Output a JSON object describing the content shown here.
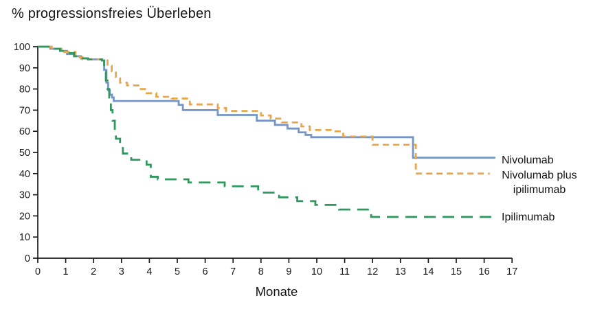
{
  "chart_data": {
    "type": "line",
    "variant": "kaplan-meier-step",
    "title": "% progressionsfreies Überleben",
    "xlabel": "Monate",
    "ylabel": "% progressionsfreies Überleben",
    "xlim": [
      0,
      17
    ],
    "ylim": [
      0,
      100
    ],
    "xticks": [
      0,
      1,
      2,
      3,
      4,
      5,
      6,
      7,
      8,
      9,
      10,
      11,
      12,
      13,
      14,
      15,
      16,
      17
    ],
    "yticks": [
      0,
      10,
      20,
      30,
      40,
      50,
      60,
      70,
      80,
      90,
      100
    ],
    "grid": false,
    "axis_color": "#1a1a1a",
    "legend_position": "right of curve ends",
    "series": [
      {
        "name": "Nivolumab",
        "label_lines": [
          "Nivolumab"
        ],
        "color": "#7495c6",
        "line_style": "solid",
        "x_end": 16.4,
        "points": [
          [
            0,
            100
          ],
          [
            0.45,
            99
          ],
          [
            0.8,
            98
          ],
          [
            1.05,
            96.5
          ],
          [
            1.3,
            95.5
          ],
          [
            1.55,
            94.5
          ],
          [
            1.8,
            94
          ],
          [
            2.3,
            93.5
          ],
          [
            2.38,
            89
          ],
          [
            2.46,
            83
          ],
          [
            2.52,
            79.5
          ],
          [
            2.58,
            77.3
          ],
          [
            2.66,
            76
          ],
          [
            2.72,
            74.3
          ],
          [
            5.05,
            72.5
          ],
          [
            5.2,
            70
          ],
          [
            6.45,
            67.7
          ],
          [
            7.85,
            65
          ],
          [
            8.5,
            63
          ],
          [
            8.95,
            61.3
          ],
          [
            9.35,
            59.5
          ],
          [
            9.6,
            58.3
          ],
          [
            9.8,
            57.2
          ],
          [
            13.45,
            47.5
          ]
        ]
      },
      {
        "name": "Nivolumab plus ipilimumab",
        "label_lines": [
          "Nivolumab plus",
          "ipilimumab"
        ],
        "color": "#e8a64a",
        "line_style": "dashed",
        "x_end": 16.2,
        "points": [
          [
            0,
            100
          ],
          [
            0.5,
            99
          ],
          [
            0.95,
            97.5
          ],
          [
            1.35,
            95
          ],
          [
            1.6,
            94
          ],
          [
            2.3,
            93.5
          ],
          [
            2.5,
            91
          ],
          [
            2.65,
            88.5
          ],
          [
            2.8,
            85
          ],
          [
            2.95,
            83
          ],
          [
            3.2,
            81.7
          ],
          [
            3.6,
            80
          ],
          [
            3.9,
            78
          ],
          [
            4.25,
            76.3
          ],
          [
            4.8,
            75.5
          ],
          [
            5.45,
            72.7
          ],
          [
            6.45,
            71
          ],
          [
            6.75,
            69.6
          ],
          [
            8.0,
            67.5
          ],
          [
            8.35,
            66
          ],
          [
            8.75,
            64.2
          ],
          [
            9.45,
            62.3
          ],
          [
            9.75,
            60.6
          ],
          [
            10.6,
            60
          ],
          [
            10.95,
            57.5
          ],
          [
            12.0,
            53.6
          ],
          [
            13.55,
            40
          ]
        ]
      },
      {
        "name": "Ipilimumab",
        "label_lines": [
          "Ipilimumab"
        ],
        "color": "#31975f",
        "line_style": "long-dashed",
        "x_end": 16.45,
        "points": [
          [
            0,
            100
          ],
          [
            0.45,
            99
          ],
          [
            0.8,
            98
          ],
          [
            1.05,
            97
          ],
          [
            1.3,
            95.5
          ],
          [
            1.55,
            94.5
          ],
          [
            1.8,
            94
          ],
          [
            2.3,
            93.5
          ],
          [
            2.38,
            88
          ],
          [
            2.44,
            84
          ],
          [
            2.5,
            80
          ],
          [
            2.56,
            76
          ],
          [
            2.62,
            70
          ],
          [
            2.68,
            65
          ],
          [
            2.76,
            60
          ],
          [
            2.8,
            56.5
          ],
          [
            2.95,
            53
          ],
          [
            3.05,
            49.5
          ],
          [
            3.35,
            46.5
          ],
          [
            3.9,
            44.2
          ],
          [
            4.05,
            38.5
          ],
          [
            4.3,
            37.3
          ],
          [
            5.4,
            35.8
          ],
          [
            6.7,
            34
          ],
          [
            7.9,
            31
          ],
          [
            8.65,
            28.8
          ],
          [
            9.3,
            27
          ],
          [
            9.95,
            25.2
          ],
          [
            10.8,
            23
          ],
          [
            11.95,
            19.5
          ]
        ]
      }
    ]
  }
}
